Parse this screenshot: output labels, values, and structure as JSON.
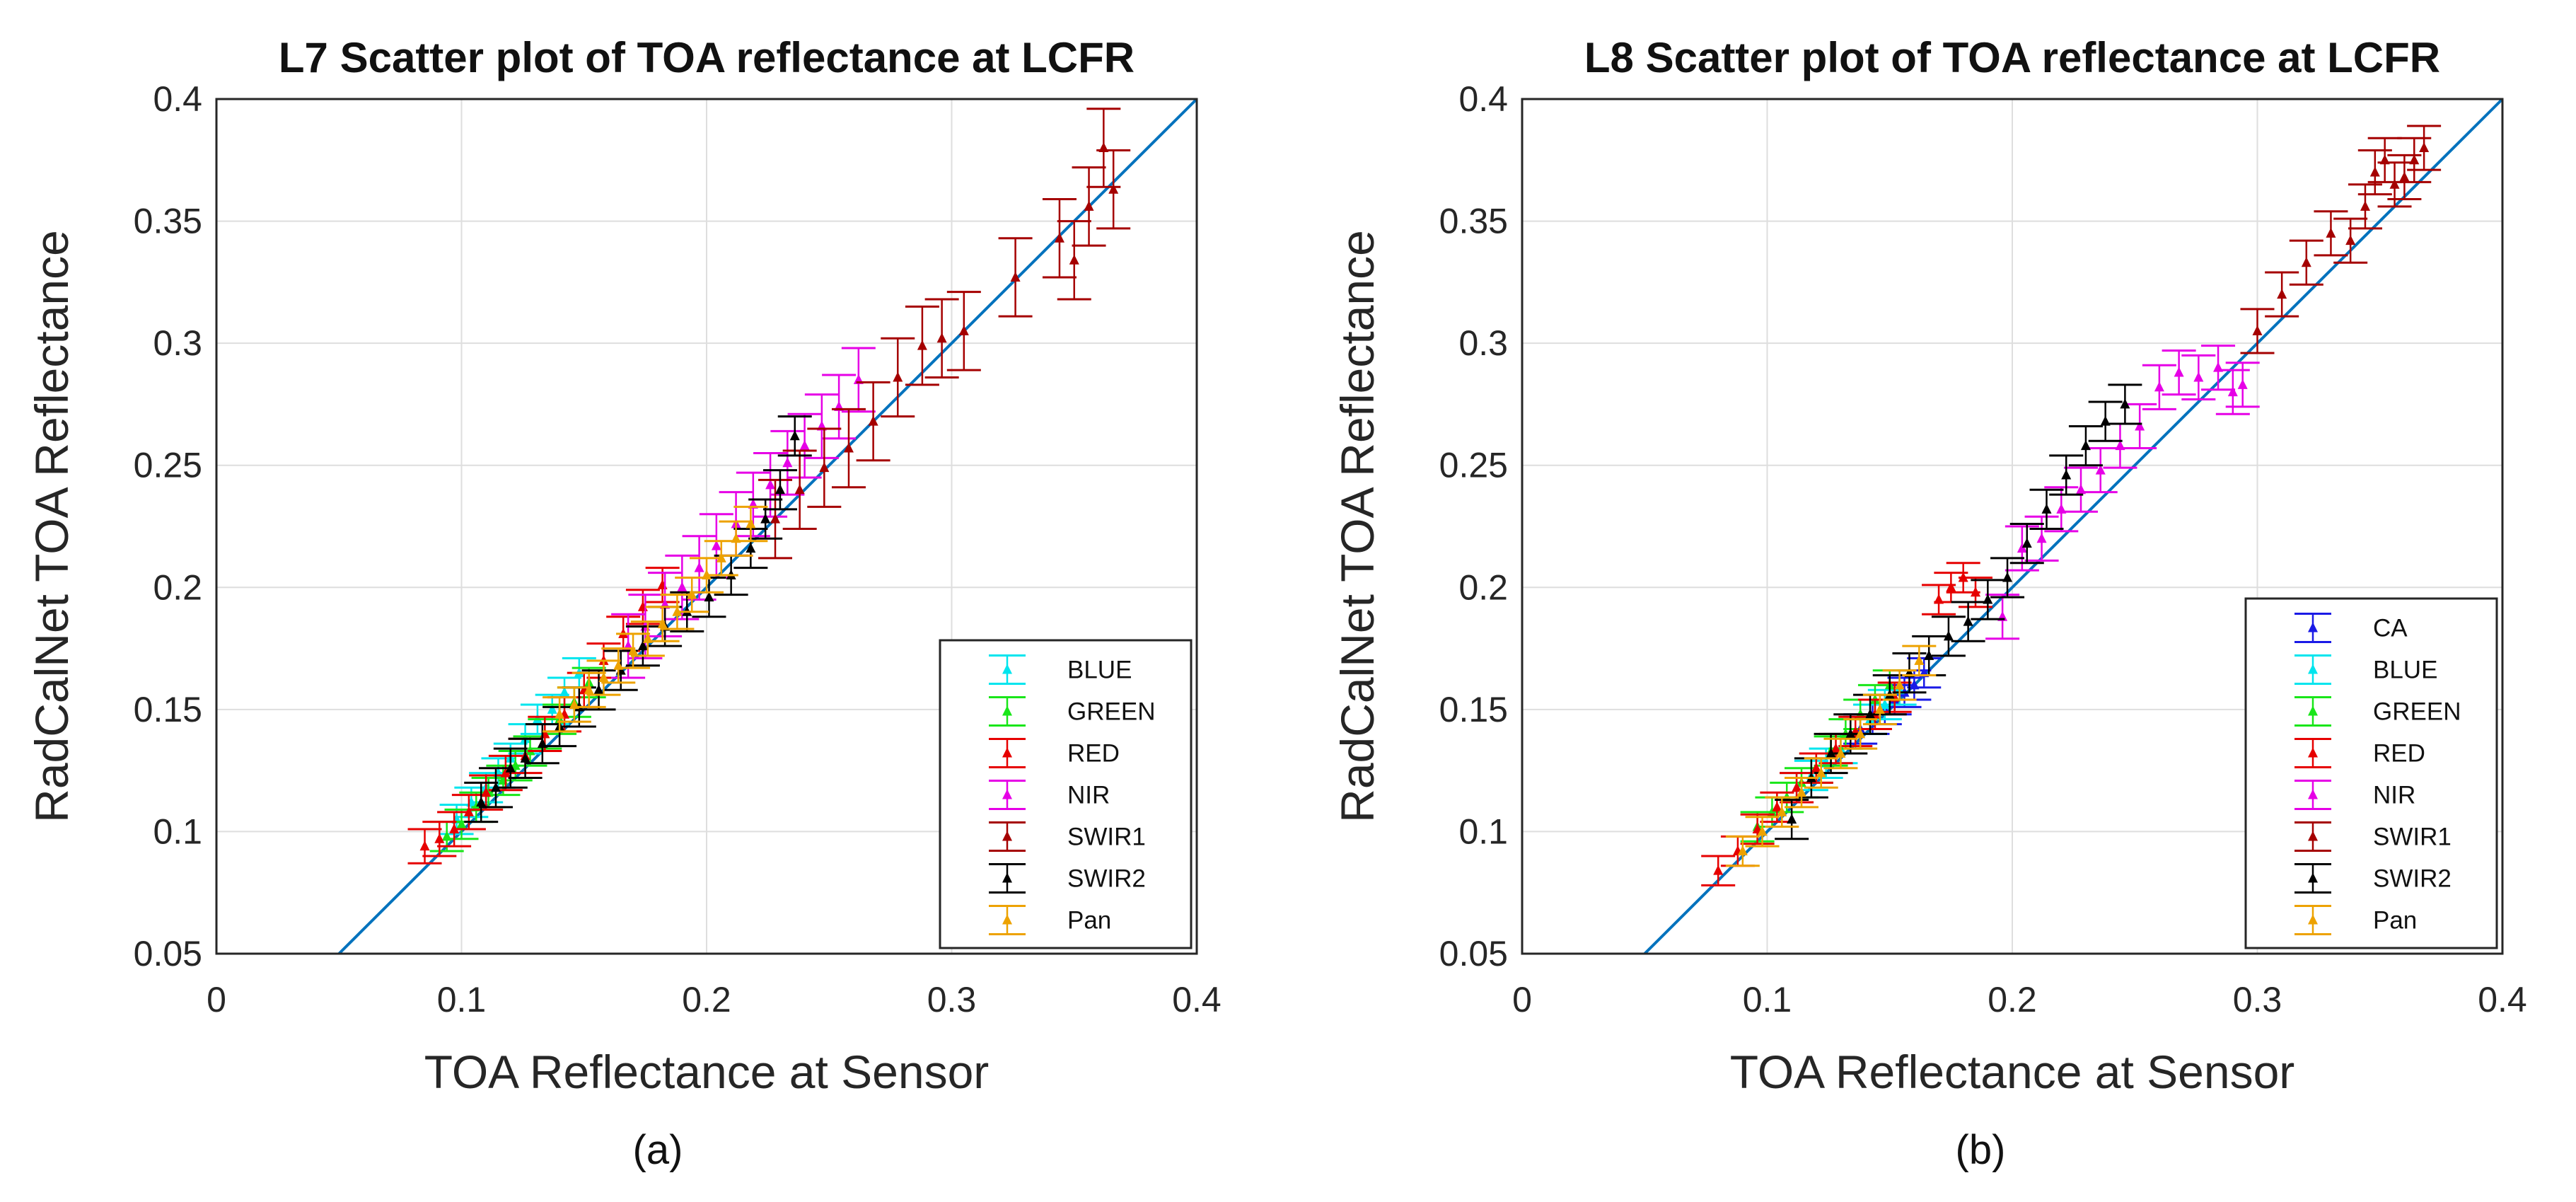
{
  "subfigure_labels": [
    "(a)",
    "(b)"
  ],
  "chart_data": [
    {
      "type": "scatter",
      "title": "L7 Scatter plot of TOA reflectance at LCFR",
      "xlabel": "TOA Reflectance at Sensor",
      "ylabel": "RadCalNet TOA Reflectance",
      "xlim": [
        0,
        0.4
      ],
      "ylim": [
        0.05,
        0.4
      ],
      "xticks": [
        0,
        0.1,
        0.2,
        0.3,
        0.4
      ],
      "xtick_labels": [
        "0",
        "0.1",
        "0.2",
        "0.3",
        "0.4"
      ],
      "yticks": [
        0.05,
        0.1,
        0.15,
        0.2,
        0.25,
        0.3,
        0.35,
        0.4
      ],
      "ytick_labels": [
        "0.05",
        "0.1",
        "0.15",
        "0.2",
        "0.25",
        "0.3",
        "0.35",
        "0.4"
      ],
      "grid": true,
      "legend_position": "bottom-right",
      "reference_line": {
        "name": "1:1 line",
        "color": "#0072BD",
        "x": [
          0.05,
          0.4
        ],
        "y": [
          0.05,
          0.4
        ]
      },
      "series": [
        {
          "name": "BLUE",
          "color": "#00E5EE",
          "x": [
            0.098,
            0.104,
            0.11,
            0.115,
            0.12,
            0.126,
            0.131,
            0.137,
            0.142,
            0.148
          ],
          "y": [
            0.105,
            0.112,
            0.118,
            0.124,
            0.13,
            0.138,
            0.146,
            0.15,
            0.157,
            0.165
          ],
          "err": 0.006
        },
        {
          "name": "GREEN",
          "color": "#19E619",
          "x": [
            0.094,
            0.1,
            0.106,
            0.111,
            0.117,
            0.122,
            0.128,
            0.134,
            0.14,
            0.146,
            0.152
          ],
          "y": [
            0.098,
            0.103,
            0.11,
            0.116,
            0.121,
            0.127,
            0.133,
            0.14,
            0.146,
            0.153,
            0.161
          ],
          "err": 0.006
        },
        {
          "name": "RED",
          "color": "#E60000",
          "x": [
            0.085,
            0.091,
            0.097,
            0.103,
            0.11,
            0.118,
            0.126,
            0.134,
            0.142,
            0.15,
            0.158,
            0.166,
            0.174,
            0.182
          ],
          "y": [
            0.094,
            0.097,
            0.101,
            0.108,
            0.116,
            0.124,
            0.131,
            0.14,
            0.148,
            0.158,
            0.17,
            0.181,
            0.192,
            0.201
          ],
          "err": 0.007
        },
        {
          "name": "NIR",
          "color": "#E600E6",
          "x": [
            0.168,
            0.175,
            0.183,
            0.19,
            0.197,
            0.204,
            0.212,
            0.219,
            0.226,
            0.233,
            0.24,
            0.247,
            0.254,
            0.262
          ],
          "y": [
            0.176,
            0.184,
            0.193,
            0.2,
            0.208,
            0.217,
            0.226,
            0.234,
            0.242,
            0.251,
            0.258,
            0.266,
            0.274,
            0.285
          ],
          "err": 0.013
        },
        {
          "name": "SWIR1",
          "color": "#A50000",
          "x": [
            0.228,
            0.238,
            0.248,
            0.258,
            0.268,
            0.278,
            0.288,
            0.296,
            0.305,
            0.326,
            0.344,
            0.35,
            0.356,
            0.362,
            0.366
          ],
          "y": [
            0.228,
            0.24,
            0.249,
            0.257,
            0.268,
            0.286,
            0.299,
            0.302,
            0.305,
            0.327,
            0.343,
            0.334,
            0.356,
            0.38,
            0.363
          ],
          "err": 0.016
        },
        {
          "name": "SWIR2",
          "color": "#000000",
          "x": [
            0.108,
            0.114,
            0.12,
            0.126,
            0.133,
            0.14,
            0.148,
            0.156,
            0.165,
            0.174,
            0.183,
            0.192,
            0.201,
            0.21,
            0.218,
            0.224,
            0.23,
            0.236
          ],
          "y": [
            0.112,
            0.118,
            0.126,
            0.13,
            0.136,
            0.143,
            0.151,
            0.158,
            0.166,
            0.176,
            0.184,
            0.19,
            0.196,
            0.205,
            0.216,
            0.228,
            0.24,
            0.262
          ],
          "err": 0.008
        },
        {
          "name": "Pan",
          "color": "#EDA200",
          "x": [
            0.14,
            0.146,
            0.152,
            0.158,
            0.164,
            0.17,
            0.176,
            0.182,
            0.188,
            0.194,
            0.2,
            0.206,
            0.212,
            0.218
          ],
          "y": [
            0.148,
            0.152,
            0.158,
            0.163,
            0.168,
            0.174,
            0.179,
            0.185,
            0.19,
            0.197,
            0.205,
            0.212,
            0.22,
            0.226
          ],
          "err": 0.007
        }
      ]
    },
    {
      "type": "scatter",
      "title": "L8 Scatter plot of TOA reflectance at LCFR",
      "xlabel": "TOA Reflectance at Sensor",
      "ylabel": "RadCalNet TOA Reflectance",
      "xlim": [
        0,
        0.4
      ],
      "ylim": [
        0.05,
        0.4
      ],
      "xticks": [
        0,
        0.1,
        0.2,
        0.3,
        0.4
      ],
      "xtick_labels": [
        "0",
        "0.1",
        "0.2",
        "0.3",
        "0.4"
      ],
      "yticks": [
        0.05,
        0.1,
        0.15,
        0.2,
        0.25,
        0.3,
        0.35,
        0.4
      ],
      "ytick_labels": [
        "0.05",
        "0.1",
        "0.15",
        "0.2",
        "0.25",
        "0.3",
        "0.35",
        "0.4"
      ],
      "grid": true,
      "legend_position": "bottom-right",
      "reference_line": {
        "name": "1:1 line",
        "color": "#0072BD",
        "x": [
          0.05,
          0.4
        ],
        "y": [
          0.05,
          0.4
        ]
      },
      "series": [
        {
          "name": "CA",
          "color": "#1A1AE6",
          "x": [
            0.138,
            0.143,
            0.148,
            0.152,
            0.156,
            0.16,
            0.164
          ],
          "y": [
            0.142,
            0.146,
            0.15,
            0.154,
            0.157,
            0.16,
            0.165
          ],
          "err": 0.006
        },
        {
          "name": "BLUE",
          "color": "#00E5EE",
          "x": [
            0.112,
            0.118,
            0.124,
            0.13,
            0.136,
            0.142,
            0.148,
            0.154
          ],
          "y": [
            0.118,
            0.123,
            0.128,
            0.134,
            0.14,
            0.146,
            0.152,
            0.158
          ],
          "err": 0.006
        },
        {
          "name": "GREEN",
          "color": "#19E619",
          "x": [
            0.096,
            0.102,
            0.108,
            0.114,
            0.12,
            0.126,
            0.132,
            0.138,
            0.144,
            0.15
          ],
          "y": [
            0.102,
            0.108,
            0.114,
            0.12,
            0.126,
            0.133,
            0.14,
            0.148,
            0.154,
            0.16
          ],
          "err": 0.006
        },
        {
          "name": "RED",
          "color": "#E60000",
          "x": [
            0.08,
            0.088,
            0.096,
            0.104,
            0.112,
            0.12,
            0.128,
            0.136,
            0.144,
            0.152,
            0.17,
            0.175,
            0.18,
            0.185
          ],
          "y": [
            0.084,
            0.092,
            0.101,
            0.11,
            0.118,
            0.126,
            0.134,
            0.141,
            0.148,
            0.155,
            0.195,
            0.2,
            0.204,
            0.198
          ],
          "err": 0.006
        },
        {
          "name": "NIR",
          "color": "#E600E6",
          "x": [
            0.196,
            0.204,
            0.212,
            0.22,
            0.228,
            0.236,
            0.244,
            0.252,
            0.26,
            0.268,
            0.276,
            0.284,
            0.29,
            0.294
          ],
          "y": [
            0.188,
            0.216,
            0.22,
            0.232,
            0.24,
            0.248,
            0.258,
            0.266,
            0.282,
            0.288,
            0.286,
            0.29,
            0.28,
            0.283
          ],
          "err": 0.009
        },
        {
          "name": "SWIR1",
          "color": "#A50000",
          "x": [
            0.3,
            0.31,
            0.32,
            0.33,
            0.338,
            0.344,
            0.348,
            0.352,
            0.356,
            0.36,
            0.364,
            0.368
          ],
          "y": [
            0.305,
            0.32,
            0.333,
            0.345,
            0.342,
            0.356,
            0.37,
            0.375,
            0.365,
            0.368,
            0.375,
            0.38
          ],
          "err": 0.009
        },
        {
          "name": "SWIR2",
          "color": "#000000",
          "x": [
            0.11,
            0.118,
            0.126,
            0.134,
            0.142,
            0.15,
            0.158,
            0.166,
            0.174,
            0.182,
            0.19,
            0.198,
            0.206,
            0.214,
            0.222,
            0.23,
            0.238,
            0.246
          ],
          "y": [
            0.105,
            0.122,
            0.132,
            0.14,
            0.148,
            0.156,
            0.165,
            0.172,
            0.18,
            0.186,
            0.195,
            0.204,
            0.218,
            0.232,
            0.246,
            0.258,
            0.268,
            0.275
          ],
          "err": 0.008
        },
        {
          "name": "Pan",
          "color": "#EDA200",
          "x": [
            0.09,
            0.098,
            0.106,
            0.114,
            0.122,
            0.13,
            0.138,
            0.146,
            0.154,
            0.162
          ],
          "y": [
            0.092,
            0.1,
            0.108,
            0.116,
            0.124,
            0.132,
            0.14,
            0.15,
            0.16,
            0.17
          ],
          "err": 0.006
        }
      ]
    }
  ]
}
